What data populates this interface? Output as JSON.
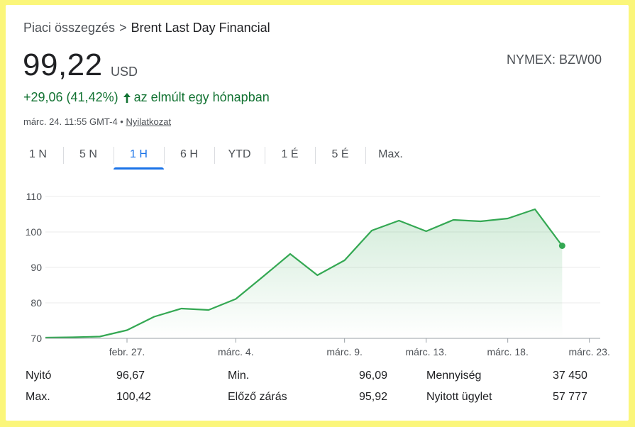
{
  "breadcrumb": {
    "parent": "Piaci összegzés",
    "separator": ">",
    "current": "Brent Last Day Financial"
  },
  "quote": {
    "price": "99,22",
    "currency": "USD",
    "exchange_ticker": "NYMEX: BZW00",
    "change": "+29,06 (41,42%)",
    "change_period": "az elmúlt egy hónapban",
    "timestamp": "márc. 24. 11:55 GMT-4 •",
    "disclaimer": "Nyilatkozat"
  },
  "colors": {
    "positive": "#137333",
    "line": "#34a853",
    "accent": "#1a73e8"
  },
  "tabs": [
    {
      "label": "1 N",
      "active": false
    },
    {
      "label": "5 N",
      "active": false
    },
    {
      "label": "1 H",
      "active": true
    },
    {
      "label": "6 H",
      "active": false
    },
    {
      "label": "YTD",
      "active": false
    },
    {
      "label": "1 É",
      "active": false
    },
    {
      "label": "5 É",
      "active": false
    },
    {
      "label": "Max.",
      "active": false
    }
  ],
  "chart_data": {
    "type": "area",
    "y_ticks": [
      "110",
      "100",
      "90",
      "80",
      "70"
    ],
    "y_tick_values": [
      110,
      100,
      90,
      80,
      70
    ],
    "ylim": [
      70,
      112
    ],
    "x_ticks": [
      "febr. 27.",
      "márc. 4.",
      "márc. 9.",
      "márc. 13.",
      "márc. 18.",
      "márc. 23."
    ],
    "x_tick_index": [
      3,
      7,
      11,
      14,
      17,
      20
    ],
    "xlim": [
      0,
      20.4
    ],
    "grid": true,
    "values": [
      70.2,
      70.3,
      70.5,
      72.3,
      76.1,
      78.4,
      78.0,
      81.1,
      87.4,
      93.8,
      87.8,
      92.0,
      100.4,
      103.2,
      100.2,
      103.4,
      103.0,
      103.8,
      106.4,
      96.1
    ]
  },
  "stats": [
    {
      "left_label": "Nyitó",
      "left_value": "96,67",
      "mid_label": "Min.",
      "mid_value": "96,09",
      "right_label": "Mennyiség",
      "right_value": "37 450"
    },
    {
      "left_label": "Max.",
      "left_value": "100,42",
      "mid_label": "Előző zárás",
      "mid_value": "95,92",
      "right_label": "Nyitott ügylet",
      "right_value": "57 777"
    }
  ]
}
